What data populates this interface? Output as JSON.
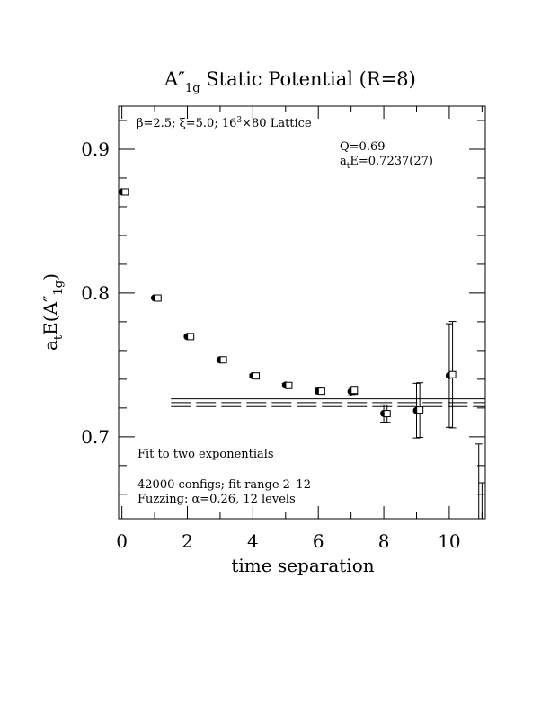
{
  "chart_data": {
    "type": "scatter",
    "title": "A″",
    "title_subscript": "1g",
    "title_rest": " Static Potential (R=8)",
    "xlabel": "time separation",
    "ylabel_main": "a",
    "ylabel_sub": "t",
    "ylabel_rest": "E(A″",
    "ylabel_sub2": "1g",
    "ylabel_close": ")",
    "xlim": [
      -0.1,
      11.1
    ],
    "ylim": [
      0.643,
      0.93
    ],
    "x_ticks": [
      0,
      2,
      4,
      6,
      8,
      10
    ],
    "y_ticks": [
      0.7,
      0.8,
      0.9
    ],
    "x_tick_labels": [
      "0",
      "2",
      "4",
      "6",
      "8",
      "10"
    ],
    "y_tick_labels": [
      "0.7",
      "0.8",
      "0.9"
    ],
    "annotations": {
      "lattice_beta": "β=2.5; ξ=5.0; 16",
      "lattice_exp": "3",
      "lattice_rest": "×80 Lattice",
      "q": "Q=0.69",
      "energy_a": "a",
      "energy_sub": "t",
      "energy_rest": "E=0.7237(27)",
      "fit_type": "Fit to two exponentials",
      "configs": "42000 configs; fit range 2–12",
      "fuzzing": "Fuzzing: α=0.26, 12 levels"
    },
    "series": [
      {
        "marker": "filled-circle",
        "x": [
          0,
          1,
          2,
          3,
          4,
          5,
          6,
          7,
          8,
          9,
          10
        ],
        "y": [
          0.8704,
          0.7966,
          0.7697,
          0.7535,
          0.7424,
          0.7359,
          0.7318,
          0.7315,
          0.7162,
          0.7182,
          0.7426
        ],
        "err": [
          0.0005,
          0.0007,
          0.0008,
          0.0009,
          0.001,
          0.0012,
          0.002,
          0.003,
          0.006,
          0.019,
          0.036
        ]
      },
      {
        "marker": "open-square",
        "x": [
          0.1,
          1.1,
          2.1,
          3.1,
          4.1,
          5.1,
          6.1,
          7.1,
          8.1,
          9.1,
          10.1
        ],
        "y": [
          0.8703,
          0.7965,
          0.7697,
          0.7535,
          0.7423,
          0.7357,
          0.7317,
          0.7323,
          0.7161,
          0.7186,
          0.7432
        ],
        "err": [
          0.0005,
          0.0007,
          0.0008,
          0.0009,
          0.001,
          0.0012,
          0.0018,
          0.0028,
          0.006,
          0.019,
          0.037
        ]
      },
      {
        "marker": "none",
        "x": [
          10.9,
          11.0
        ],
        "y": [
          0.6645,
          0.6545
        ],
        "err": [
          0.0305,
          0.0135
        ]
      }
    ],
    "fit": {
      "value": 0.7237,
      "error": 0.0027,
      "x_range": [
        1.5,
        11.1
      ]
    }
  }
}
